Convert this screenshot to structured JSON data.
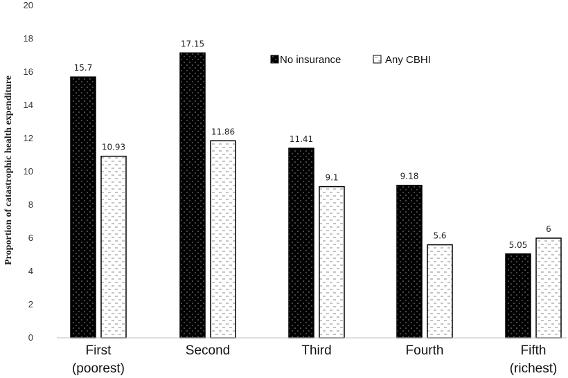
{
  "chart_data": {
    "type": "bar",
    "title": "",
    "xlabel": "",
    "ylabel": "Proportion of catastrophic health expenditure",
    "ylim": [
      0,
      20
    ],
    "yticks": [
      "0",
      "2",
      "4",
      "6",
      "8",
      "10",
      "12",
      "14",
      "16",
      "18",
      "20"
    ],
    "grid": false,
    "legend_position": "top-right",
    "categories": [
      [
        "First",
        "(poorest)"
      ],
      [
        "Second"
      ],
      [
        "Third"
      ],
      [
        "Fourth"
      ],
      [
        "Fifth",
        "(richest)"
      ]
    ],
    "series": [
      {
        "name": "No insurance",
        "pattern": "dotted-black",
        "color": "#000000",
        "values": [
          15.7,
          17.15,
          11.41,
          9.18,
          5.05
        ],
        "labels": [
          "15.7",
          "17.15",
          "11.41",
          "9.18",
          "5.05"
        ]
      },
      {
        "name": "Any CBHI",
        "pattern": "dashed-white",
        "color": "#ffffff",
        "values": [
          10.93,
          11.86,
          9.1,
          5.6,
          6
        ],
        "labels": [
          "10.93",
          "11.86",
          "9.1",
          "5.6",
          "6"
        ]
      }
    ]
  }
}
